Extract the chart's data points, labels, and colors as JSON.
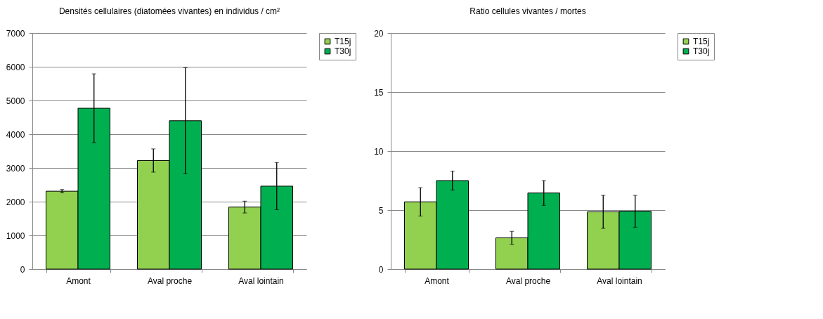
{
  "chart_data": [
    {
      "type": "bar",
      "title": "Densités cellulaires (diatomées vivantes) en individus / cm²",
      "categories": [
        "Amont",
        "Aval proche",
        "Aval lointain"
      ],
      "series": [
        {
          "name": "T15j",
          "color": "#92d050",
          "values": [
            2310,
            3220,
            1840
          ],
          "errors": [
            50,
            345,
            175
          ]
        },
        {
          "name": "T30j",
          "color": "#00b050",
          "values": [
            4770,
            4400,
            2460
          ],
          "errors": [
            1020,
            1570,
            700
          ]
        }
      ],
      "ylim": [
        0,
        7000
      ],
      "yticks": [
        0,
        1000,
        2000,
        3000,
        4000,
        5000,
        6000,
        7000
      ],
      "grid": "y",
      "legend": "right"
    },
    {
      "type": "bar",
      "title": "Ratio cellules vivantes / mortes",
      "categories": [
        "Amont",
        "Aval proche",
        "Aval lointain"
      ],
      "series": [
        {
          "name": "T15j",
          "color": "#92d050",
          "values": [
            5.7,
            2.65,
            4.85
          ],
          "errors": [
            1.2,
            0.55,
            1.4
          ]
        },
        {
          "name": "T30j",
          "color": "#00b050",
          "values": [
            7.5,
            6.45,
            4.9
          ],
          "errors": [
            0.8,
            1.05,
            1.35
          ]
        }
      ],
      "ylim": [
        0,
        20
      ],
      "yticks": [
        0,
        5,
        10,
        15,
        20
      ],
      "grid": "y",
      "legend": "right"
    }
  ]
}
